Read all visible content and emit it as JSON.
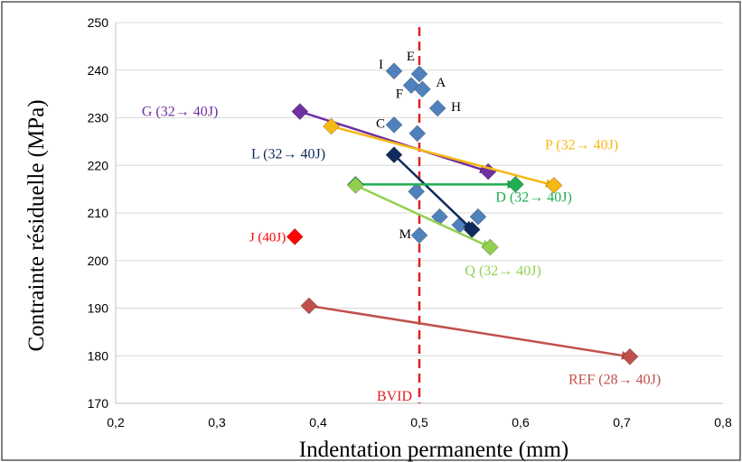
{
  "chart_data": {
    "type": "scatter",
    "xlabel": "Indentation permanente (mm)",
    "ylabel": "Contrainte résiduelle (MPa)",
    "xlim": [
      0.2,
      0.8
    ],
    "ylim": [
      170,
      250
    ],
    "x_ticks": [
      "0,2",
      "0,3",
      "0,4",
      "0,5",
      "0,6",
      "0,7",
      "0,8"
    ],
    "y_ticks": [
      "170",
      "180",
      "190",
      "200",
      "210",
      "220",
      "230",
      "240",
      "250"
    ],
    "grid": "horizontal",
    "threshold": {
      "x": 0.5,
      "label": "BVID",
      "color": "#e02020"
    },
    "points": [
      {
        "x": 0.475,
        "y": 239.8,
        "label": "I",
        "color": "#4f81bd"
      },
      {
        "x": 0.5,
        "y": 239.2,
        "label": "E",
        "color": "#4f81bd"
      },
      {
        "x": 0.492,
        "y": 236.8,
        "label": "F",
        "color": "#4f81bd"
      },
      {
        "x": 0.503,
        "y": 236.0,
        "label": "A",
        "color": "#4f81bd"
      },
      {
        "x": 0.518,
        "y": 232.0,
        "label": "H",
        "color": "#4f81bd"
      },
      {
        "x": 0.475,
        "y": 228.5,
        "label": "C",
        "color": "#4f81bd"
      },
      {
        "x": 0.498,
        "y": 226.7,
        "label": "",
        "color": "#4f81bd"
      },
      {
        "x": 0.497,
        "y": 214.5,
        "label": "",
        "color": "#4f81bd"
      },
      {
        "x": 0.52,
        "y": 209.2,
        "label": "",
        "color": "#4f81bd"
      },
      {
        "x": 0.558,
        "y": 209.2,
        "label": "",
        "color": "#4f81bd"
      },
      {
        "x": 0.54,
        "y": 207.5,
        "label": "",
        "color": "#4f81bd"
      },
      {
        "x": 0.5,
        "y": 205.3,
        "label": "M",
        "color": "#4f81bd"
      },
      {
        "x": 0.377,
        "y": 205.0,
        "label": "J (40J)",
        "color": "#ff0000"
      }
    ],
    "series": [
      {
        "name": "G (32→ 40J)",
        "color": "#7030a0",
        "start": {
          "x": 0.382,
          "y": 231.3
        },
        "end": {
          "x": 0.568,
          "y": 218.7
        }
      },
      {
        "name": "P (32→ 40J)",
        "color": "#f6b814",
        "start": {
          "x": 0.413,
          "y": 228.2
        },
        "end": {
          "x": 0.633,
          "y": 215.8
        }
      },
      {
        "name": "L (32→ 40J)",
        "color": "#0f2a5c",
        "start": {
          "x": 0.475,
          "y": 222.2
        },
        "end": {
          "x": 0.552,
          "y": 206.5
        }
      },
      {
        "name": "D (32→ 40J)",
        "color": "#1fae52",
        "start": {
          "x": 0.437,
          "y": 216.0
        },
        "end": {
          "x": 0.595,
          "y": 216.0
        }
      },
      {
        "name": "Q (32→ 40J)",
        "color": "#92d050",
        "start": {
          "x": 0.437,
          "y": 215.8
        },
        "end": {
          "x": 0.57,
          "y": 202.8
        }
      },
      {
        "name": "REF (28→ 40J)",
        "color": "#c0504d",
        "start": {
          "x": 0.391,
          "y": 190.5
        },
        "end": {
          "x": 0.708,
          "y": 179.8
        }
      }
    ]
  }
}
